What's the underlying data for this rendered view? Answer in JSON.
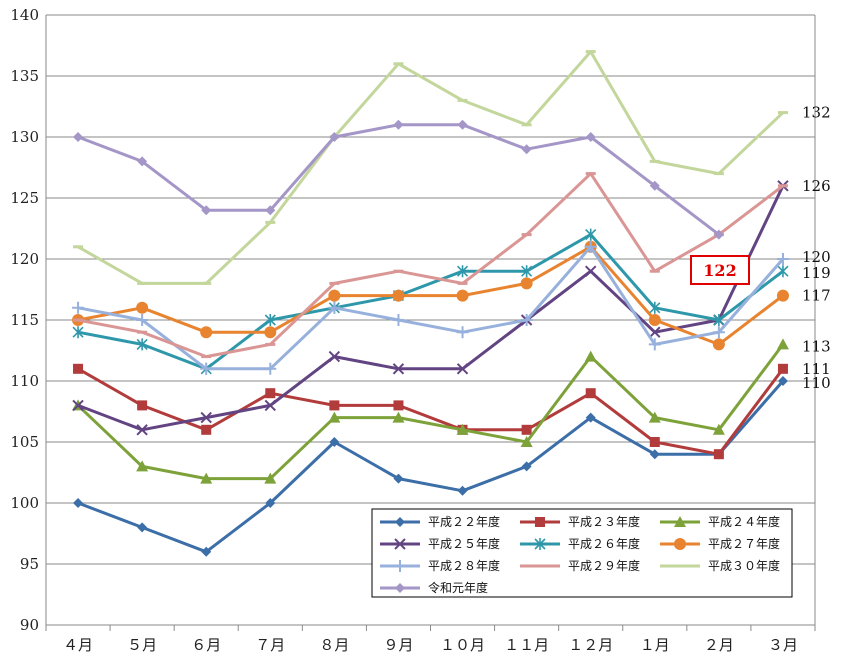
{
  "chart_data": {
    "type": "line",
    "title": "",
    "xlabel": "",
    "ylabel": "",
    "ylim": [
      90,
      140
    ],
    "yticks": [
      90,
      95,
      100,
      105,
      110,
      115,
      120,
      125,
      130,
      135,
      140
    ],
    "grid": "horizontal",
    "legend_position": "bottom-right",
    "categories": [
      "４月",
      "５月",
      "６月",
      "７月",
      "８月",
      "９月",
      "１０月",
      "１１月",
      "１２月",
      "１月",
      "２月",
      "３月"
    ],
    "series": [
      {
        "name": "平成２２年度",
        "color": "#3c6ea8",
        "marker": "diamond",
        "values": [
          100,
          98,
          96,
          100,
          105,
          102,
          101,
          103,
          107,
          104,
          104,
          110
        ]
      },
      {
        "name": "平成２３年度",
        "color": "#b23b3b",
        "marker": "square",
        "values": [
          111,
          108,
          106,
          109,
          108,
          108,
          106,
          106,
          109,
          105,
          104,
          111
        ]
      },
      {
        "name": "平成２４年度",
        "color": "#7ea23a",
        "marker": "triangle",
        "values": [
          108,
          103,
          102,
          102,
          107,
          107,
          106,
          105,
          112,
          107,
          106,
          113
        ]
      },
      {
        "name": "平成２５年度",
        "color": "#624483",
        "marker": "x",
        "values": [
          108,
          106,
          107,
          108,
          112,
          111,
          111,
          115,
          119,
          114,
          115,
          126
        ]
      },
      {
        "name": "平成２６年度",
        "color": "#2e98aa",
        "marker": "star",
        "values": [
          114,
          113,
          111,
          115,
          116,
          117,
          119,
          119,
          122,
          116,
          115,
          119
        ]
      },
      {
        "name": "平成２７年度",
        "color": "#e8832f",
        "marker": "circle",
        "values": [
          115,
          116,
          114,
          114,
          117,
          117,
          117,
          118,
          121,
          115,
          113,
          117
        ]
      },
      {
        "name": "平成２８年度",
        "color": "#97b1dc",
        "marker": "plus",
        "values": [
          116,
          115,
          111,
          111,
          116,
          115,
          114,
          115,
          121,
          113,
          114,
          120
        ]
      },
      {
        "name": "平成２９年度",
        "color": "#d99694",
        "marker": "dash",
        "values": [
          115,
          114,
          112,
          113,
          118,
          119,
          118,
          122,
          127,
          119,
          122,
          126
        ]
      },
      {
        "name": "平成３０年度",
        "color": "#c3d69b",
        "marker": "dash",
        "values": [
          121,
          118,
          118,
          123,
          130,
          136,
          133,
          131,
          137,
          128,
          127,
          132
        ]
      },
      {
        "name": "令和元年度",
        "color": "#a596c8",
        "marker": "diamond",
        "values": [
          130,
          128,
          124,
          124,
          130,
          131,
          131,
          129,
          130,
          126,
          122,
          null
        ]
      }
    ],
    "end_labels": [
      "132",
      "126",
      "120",
      "119",
      "117",
      "113",
      "111",
      "110"
    ],
    "callout": {
      "text": "122",
      "color": "#e00000"
    }
  }
}
